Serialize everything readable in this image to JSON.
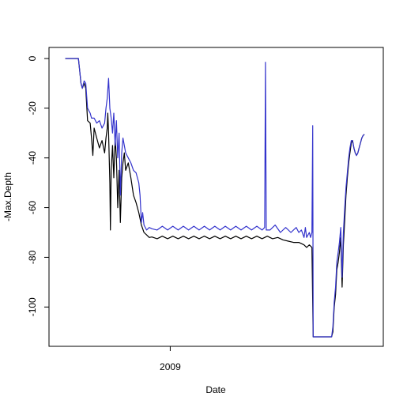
{
  "chart_data": {
    "type": "line",
    "title": "",
    "xlabel": "Date",
    "ylabel": "-Max.Depth",
    "x_tick_labels": [
      {
        "x": 2009.0,
        "label": "2009"
      }
    ],
    "xlim": [
      2008.55,
      2009.8
    ],
    "ylim": [
      -112,
      0
    ],
    "y_ticks": [
      0,
      -20,
      -40,
      -60,
      -80,
      -100
    ],
    "grid": false,
    "legend": "none",
    "series": [
      {
        "color": "#000000",
        "points": [
          [
            2008.6,
            0
          ],
          [
            2008.61,
            0
          ],
          [
            2008.62,
            0
          ],
          [
            2008.64,
            0
          ],
          [
            2008.65,
            0
          ],
          [
            2008.66,
            -10
          ],
          [
            2008.665,
            -12
          ],
          [
            2008.672,
            -10
          ],
          [
            2008.678,
            -12
          ],
          [
            2008.685,
            -25
          ],
          [
            2008.695,
            -26
          ],
          [
            2008.7,
            -32
          ],
          [
            2008.705,
            -39
          ],
          [
            2008.71,
            -28
          ],
          [
            2008.72,
            -32
          ],
          [
            2008.73,
            -36
          ],
          [
            2008.74,
            -33
          ],
          [
            2008.75,
            -38
          ],
          [
            2008.755,
            -32
          ],
          [
            2008.76,
            -28
          ],
          [
            2008.762,
            -22
          ],
          [
            2008.765,
            -30
          ],
          [
            2008.77,
            -50
          ],
          [
            2008.772,
            -69
          ],
          [
            2008.775,
            -45
          ],
          [
            2008.78,
            -35
          ],
          [
            2008.785,
            -48
          ],
          [
            2008.79,
            -32
          ],
          [
            2008.795,
            -40
          ],
          [
            2008.8,
            -60
          ],
          [
            2008.805,
            -45
          ],
          [
            2008.81,
            -66
          ],
          [
            2008.815,
            -48
          ],
          [
            2008.82,
            -42
          ],
          [
            2008.825,
            -38
          ],
          [
            2008.83,
            -45
          ],
          [
            2008.84,
            -42
          ],
          [
            2008.85,
            -48
          ],
          [
            2008.86,
            -55
          ],
          [
            2008.87,
            -58
          ],
          [
            2008.88,
            -62
          ],
          [
            2008.89,
            -67
          ],
          [
            2008.9,
            -70
          ],
          [
            2008.91,
            -71
          ],
          [
            2008.92,
            -72
          ],
          [
            2008.93,
            -71.8
          ],
          [
            2008.95,
            -72.5
          ],
          [
            2008.97,
            -71.5
          ],
          [
            2008.99,
            -72.5
          ],
          [
            2009.01,
            -71.5
          ],
          [
            2009.03,
            -72.5
          ],
          [
            2009.05,
            -71.5
          ],
          [
            2009.07,
            -72.5
          ],
          [
            2009.09,
            -71.5
          ],
          [
            2009.11,
            -72.5
          ],
          [
            2009.13,
            -71.5
          ],
          [
            2009.15,
            -72.5
          ],
          [
            2009.17,
            -71.5
          ],
          [
            2009.19,
            -72.5
          ],
          [
            2009.21,
            -71.5
          ],
          [
            2009.23,
            -72.5
          ],
          [
            2009.25,
            -71.5
          ],
          [
            2009.27,
            -72.5
          ],
          [
            2009.29,
            -71.5
          ],
          [
            2009.31,
            -72.5
          ],
          [
            2009.33,
            -71.5
          ],
          [
            2009.35,
            -72.5
          ],
          [
            2009.37,
            -71.5
          ],
          [
            2009.39,
            -72.5
          ],
          [
            2009.41,
            -72
          ],
          [
            2009.43,
            -73
          ],
          [
            2009.45,
            -73.5
          ],
          [
            2009.47,
            -74
          ],
          [
            2009.49,
            -74
          ],
          [
            2009.5,
            -74.5
          ],
          [
            2009.51,
            -75
          ],
          [
            2009.52,
            -76
          ],
          [
            2009.53,
            -75
          ],
          [
            2009.54,
            -76
          ],
          [
            2009.545,
            -112
          ],
          [
            2009.56,
            -112
          ],
          [
            2009.58,
            -112
          ],
          [
            2009.6,
            -112
          ],
          [
            2009.615,
            -112
          ],
          [
            2009.62,
            -110
          ],
          [
            2009.625,
            -100
          ],
          [
            2009.63,
            -95
          ],
          [
            2009.635,
            -85
          ],
          [
            2009.64,
            -82
          ],
          [
            2009.645,
            -78
          ],
          [
            2009.65,
            -72
          ],
          [
            2009.655,
            -92
          ],
          [
            2009.66,
            -75
          ],
          [
            2009.665,
            -65
          ],
          [
            2009.67,
            -55
          ],
          [
            2009.675,
            -48
          ],
          [
            2009.68,
            -42
          ],
          [
            2009.685,
            -38
          ],
          [
            2009.69,
            -34
          ],
          [
            2009.695,
            -33
          ],
          [
            2009.7,
            -36
          ],
          [
            2009.705,
            -38
          ],
          [
            2009.71,
            -39
          ],
          [
            2009.715,
            -38
          ],
          [
            2009.72,
            -36
          ],
          [
            2009.725,
            -34
          ],
          [
            2009.73,
            -32
          ],
          [
            2009.735,
            -31
          ],
          [
            2009.74,
            -30.5
          ]
        ]
      },
      {
        "color": "#3333cc",
        "points": [
          [
            2008.6,
            0
          ],
          [
            2008.61,
            0
          ],
          [
            2008.62,
            0
          ],
          [
            2008.64,
            0
          ],
          [
            2008.65,
            0
          ],
          [
            2008.655,
            -5
          ],
          [
            2008.66,
            -10
          ],
          [
            2008.665,
            -12
          ],
          [
            2008.672,
            -9
          ],
          [
            2008.678,
            -10
          ],
          [
            2008.685,
            -20
          ],
          [
            2008.695,
            -22
          ],
          [
            2008.7,
            -24
          ],
          [
            2008.71,
            -24
          ],
          [
            2008.72,
            -26
          ],
          [
            2008.73,
            -25
          ],
          [
            2008.74,
            -28
          ],
          [
            2008.75,
            -26
          ],
          [
            2008.755,
            -20
          ],
          [
            2008.76,
            -16
          ],
          [
            2008.765,
            -8
          ],
          [
            2008.77,
            -20
          ],
          [
            2008.775,
            -24
          ],
          [
            2008.78,
            -30
          ],
          [
            2008.785,
            -22
          ],
          [
            2008.79,
            -35
          ],
          [
            2008.795,
            -25
          ],
          [
            2008.8,
            -40
          ],
          [
            2008.805,
            -30
          ],
          [
            2008.81,
            -55
          ],
          [
            2008.815,
            -38
          ],
          [
            2008.82,
            -32
          ],
          [
            2008.825,
            -35
          ],
          [
            2008.83,
            -38
          ],
          [
            2008.84,
            -40
          ],
          [
            2008.85,
            -42
          ],
          [
            2008.86,
            -45
          ],
          [
            2008.87,
            -46
          ],
          [
            2008.88,
            -50
          ],
          [
            2008.885,
            -55
          ],
          [
            2008.89,
            -66
          ],
          [
            2008.895,
            -62
          ],
          [
            2008.9,
            -67
          ],
          [
            2008.91,
            -69
          ],
          [
            2008.92,
            -68
          ],
          [
            2008.93,
            -68.5
          ],
          [
            2008.95,
            -69
          ],
          [
            2008.97,
            -67.5
          ],
          [
            2008.99,
            -69
          ],
          [
            2009.01,
            -67.5
          ],
          [
            2009.03,
            -69
          ],
          [
            2009.05,
            -67.5
          ],
          [
            2009.07,
            -69
          ],
          [
            2009.09,
            -67.5
          ],
          [
            2009.11,
            -69
          ],
          [
            2009.13,
            -67.5
          ],
          [
            2009.15,
            -69
          ],
          [
            2009.17,
            -67.5
          ],
          [
            2009.19,
            -69
          ],
          [
            2009.21,
            -67.5
          ],
          [
            2009.23,
            -69
          ],
          [
            2009.25,
            -67.5
          ],
          [
            2009.27,
            -69
          ],
          [
            2009.29,
            -67.5
          ],
          [
            2009.31,
            -69
          ],
          [
            2009.33,
            -67.5
          ],
          [
            2009.35,
            -69
          ],
          [
            2009.36,
            -68
          ],
          [
            2009.363,
            -1.5
          ],
          [
            2009.366,
            -69
          ],
          [
            2009.38,
            -69
          ],
          [
            2009.4,
            -67
          ],
          [
            2009.42,
            -70
          ],
          [
            2009.44,
            -68
          ],
          [
            2009.46,
            -70
          ],
          [
            2009.48,
            -68
          ],
          [
            2009.49,
            -70
          ],
          [
            2009.5,
            -69
          ],
          [
            2009.51,
            -72
          ],
          [
            2009.515,
            -68
          ],
          [
            2009.52,
            -72
          ],
          [
            2009.53,
            -70
          ],
          [
            2009.535,
            -72
          ],
          [
            2009.54,
            -70
          ],
          [
            2009.543,
            -27
          ],
          [
            2009.545,
            -112
          ],
          [
            2009.56,
            -112
          ],
          [
            2009.58,
            -112
          ],
          [
            2009.6,
            -112
          ],
          [
            2009.615,
            -112
          ],
          [
            2009.62,
            -108
          ],
          [
            2009.625,
            -98
          ],
          [
            2009.63,
            -92
          ],
          [
            2009.635,
            -82
          ],
          [
            2009.64,
            -78
          ],
          [
            2009.645,
            -74
          ],
          [
            2009.65,
            -68
          ],
          [
            2009.655,
            -88
          ],
          [
            2009.66,
            -70
          ],
          [
            2009.665,
            -60
          ],
          [
            2009.67,
            -52
          ],
          [
            2009.675,
            -46
          ],
          [
            2009.68,
            -40
          ],
          [
            2009.685,
            -36
          ],
          [
            2009.69,
            -33
          ],
          [
            2009.695,
            -33
          ],
          [
            2009.7,
            -36
          ],
          [
            2009.705,
            -38
          ],
          [
            2009.71,
            -39
          ],
          [
            2009.715,
            -38
          ],
          [
            2009.72,
            -36
          ],
          [
            2009.725,
            -34
          ],
          [
            2009.73,
            -32
          ],
          [
            2009.735,
            -31
          ],
          [
            2009.74,
            -30.5
          ]
        ]
      }
    ]
  }
}
